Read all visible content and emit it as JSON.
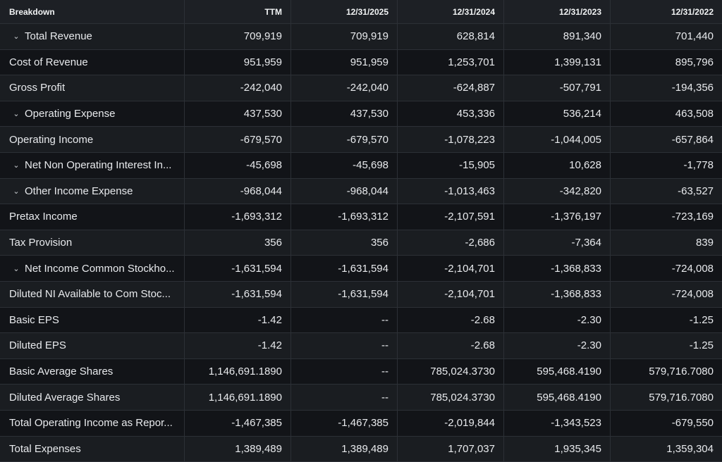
{
  "header": {
    "breakdown": "Breakdown",
    "columns": [
      "TTM",
      "12/31/2025",
      "12/31/2024",
      "12/31/2023",
      "12/31/2022"
    ]
  },
  "rows": [
    {
      "label": "Total Revenue",
      "expandable": true,
      "values": [
        "709,919",
        "709,919",
        "628,814",
        "891,340",
        "701,440"
      ]
    },
    {
      "label": "Cost of Revenue",
      "expandable": false,
      "values": [
        "951,959",
        "951,959",
        "1,253,701",
        "1,399,131",
        "895,796"
      ]
    },
    {
      "label": "Gross Profit",
      "expandable": false,
      "values": [
        "-242,040",
        "-242,040",
        "-624,887",
        "-507,791",
        "-194,356"
      ]
    },
    {
      "label": "Operating Expense",
      "expandable": true,
      "values": [
        "437,530",
        "437,530",
        "453,336",
        "536,214",
        "463,508"
      ]
    },
    {
      "label": "Operating Income",
      "expandable": false,
      "values": [
        "-679,570",
        "-679,570",
        "-1,078,223",
        "-1,044,005",
        "-657,864"
      ]
    },
    {
      "label": "Net Non Operating Interest In...",
      "expandable": true,
      "values": [
        "-45,698",
        "-45,698",
        "-15,905",
        "10,628",
        "-1,778"
      ]
    },
    {
      "label": "Other Income Expense",
      "expandable": true,
      "values": [
        "-968,044",
        "-968,044",
        "-1,013,463",
        "-342,820",
        "-63,527"
      ]
    },
    {
      "label": "Pretax Income",
      "expandable": false,
      "values": [
        "-1,693,312",
        "-1,693,312",
        "-2,107,591",
        "-1,376,197",
        "-723,169"
      ]
    },
    {
      "label": "Tax Provision",
      "expandable": false,
      "values": [
        "356",
        "356",
        "-2,686",
        "-7,364",
        "839"
      ]
    },
    {
      "label": "Net Income Common Stockho...",
      "expandable": true,
      "values": [
        "-1,631,594",
        "-1,631,594",
        "-2,104,701",
        "-1,368,833",
        "-724,008"
      ]
    },
    {
      "label": "Diluted NI Available to Com Stoc...",
      "expandable": false,
      "values": [
        "-1,631,594",
        "-1,631,594",
        "-2,104,701",
        "-1,368,833",
        "-724,008"
      ]
    },
    {
      "label": "Basic EPS",
      "expandable": false,
      "values": [
        "-1.42",
        "--",
        "-2.68",
        "-2.30",
        "-1.25"
      ]
    },
    {
      "label": "Diluted EPS",
      "expandable": false,
      "values": [
        "-1.42",
        "--",
        "-2.68",
        "-2.30",
        "-1.25"
      ]
    },
    {
      "label": "Basic Average Shares",
      "expandable": false,
      "values": [
        "1,146,691.1890",
        "--",
        "785,024.3730",
        "595,468.4190",
        "579,716.7080"
      ]
    },
    {
      "label": "Diluted Average Shares",
      "expandable": false,
      "values": [
        "1,146,691.1890",
        "--",
        "785,024.3730",
        "595,468.4190",
        "579,716.7080"
      ]
    },
    {
      "label": "Total Operating Income as Repor...",
      "expandable": false,
      "values": [
        "-1,467,385",
        "-1,467,385",
        "-2,019,844",
        "-1,343,523",
        "-679,550"
      ]
    },
    {
      "label": "Total Expenses",
      "expandable": false,
      "values": [
        "1,389,489",
        "1,389,489",
        "1,707,037",
        "1,935,345",
        "1,359,304"
      ]
    }
  ],
  "icons": {
    "expand": "chevron-down-icon"
  }
}
